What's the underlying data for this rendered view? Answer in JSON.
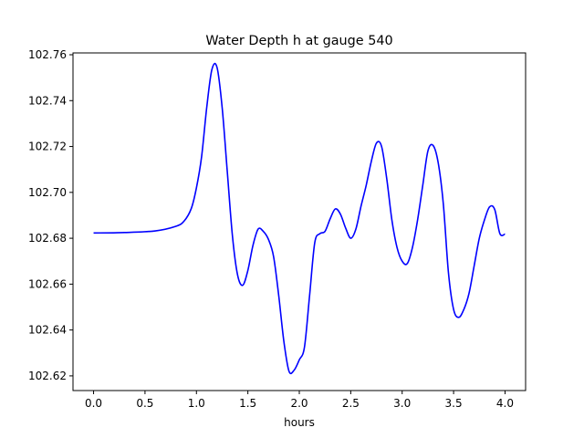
{
  "chart_data": {
    "type": "line",
    "title": "Water Depth h at gauge 540",
    "xlabel": "hours",
    "ylabel": "",
    "xlim": [
      -0.2,
      4.2
    ],
    "ylim": [
      102.6136,
      102.7608
    ],
    "grid": false,
    "x_ticks": [
      0.0,
      0.5,
      1.0,
      1.5,
      2.0,
      2.5,
      3.0,
      3.5,
      4.0
    ],
    "x_tick_labels": [
      "0.0",
      "0.5",
      "1.0",
      "1.5",
      "2.0",
      "2.5",
      "3.0",
      "3.5",
      "4.0"
    ],
    "y_ticks": [
      102.62,
      102.64,
      102.66,
      102.68,
      102.7,
      102.72,
      102.74,
      102.76
    ],
    "y_tick_labels": [
      "102.62",
      "102.64",
      "102.66",
      "102.68",
      "102.70",
      "102.72",
      "102.74",
      "102.76"
    ],
    "series": [
      {
        "color": "#0000ff",
        "x": [
          0.0,
          0.3,
          0.6,
          0.8,
          0.88,
          0.95,
          1.0,
          1.05,
          1.1,
          1.15,
          1.2,
          1.25,
          1.3,
          1.35,
          1.4,
          1.45,
          1.5,
          1.55,
          1.6,
          1.65,
          1.7,
          1.75,
          1.8,
          1.85,
          1.9,
          1.95,
          2.0,
          2.05,
          2.1,
          2.15,
          2.2,
          2.25,
          2.3,
          2.35,
          2.4,
          2.45,
          2.5,
          2.55,
          2.6,
          2.65,
          2.7,
          2.75,
          2.8,
          2.85,
          2.9,
          2.95,
          3.0,
          3.05,
          3.1,
          3.15,
          3.2,
          3.25,
          3.3,
          3.35,
          3.4,
          3.45,
          3.5,
          3.55,
          3.6,
          3.65,
          3.7,
          3.75,
          3.8,
          3.85,
          3.9,
          3.95,
          4.0
        ],
        "y": [
          102.6823,
          102.6825,
          102.6832,
          102.6852,
          102.6875,
          102.693,
          102.702,
          102.7155,
          102.737,
          102.7535,
          102.7545,
          102.737,
          102.709,
          102.681,
          102.664,
          102.6595,
          102.666,
          102.677,
          102.684,
          102.683,
          102.6795,
          102.672,
          102.655,
          102.635,
          102.622,
          102.6225,
          102.627,
          102.6325,
          102.655,
          102.678,
          102.682,
          102.683,
          102.6885,
          102.6928,
          102.6905,
          102.6845,
          102.68,
          102.684,
          102.694,
          102.703,
          102.7135,
          102.7215,
          102.72,
          102.706,
          102.688,
          102.676,
          102.67,
          102.669,
          102.676,
          102.688,
          102.703,
          102.718,
          102.7205,
          102.713,
          102.695,
          102.665,
          102.649,
          102.6455,
          102.649,
          102.656,
          102.668,
          102.68,
          102.688,
          102.6937,
          102.6925,
          102.682,
          102.6818
        ]
      }
    ]
  }
}
